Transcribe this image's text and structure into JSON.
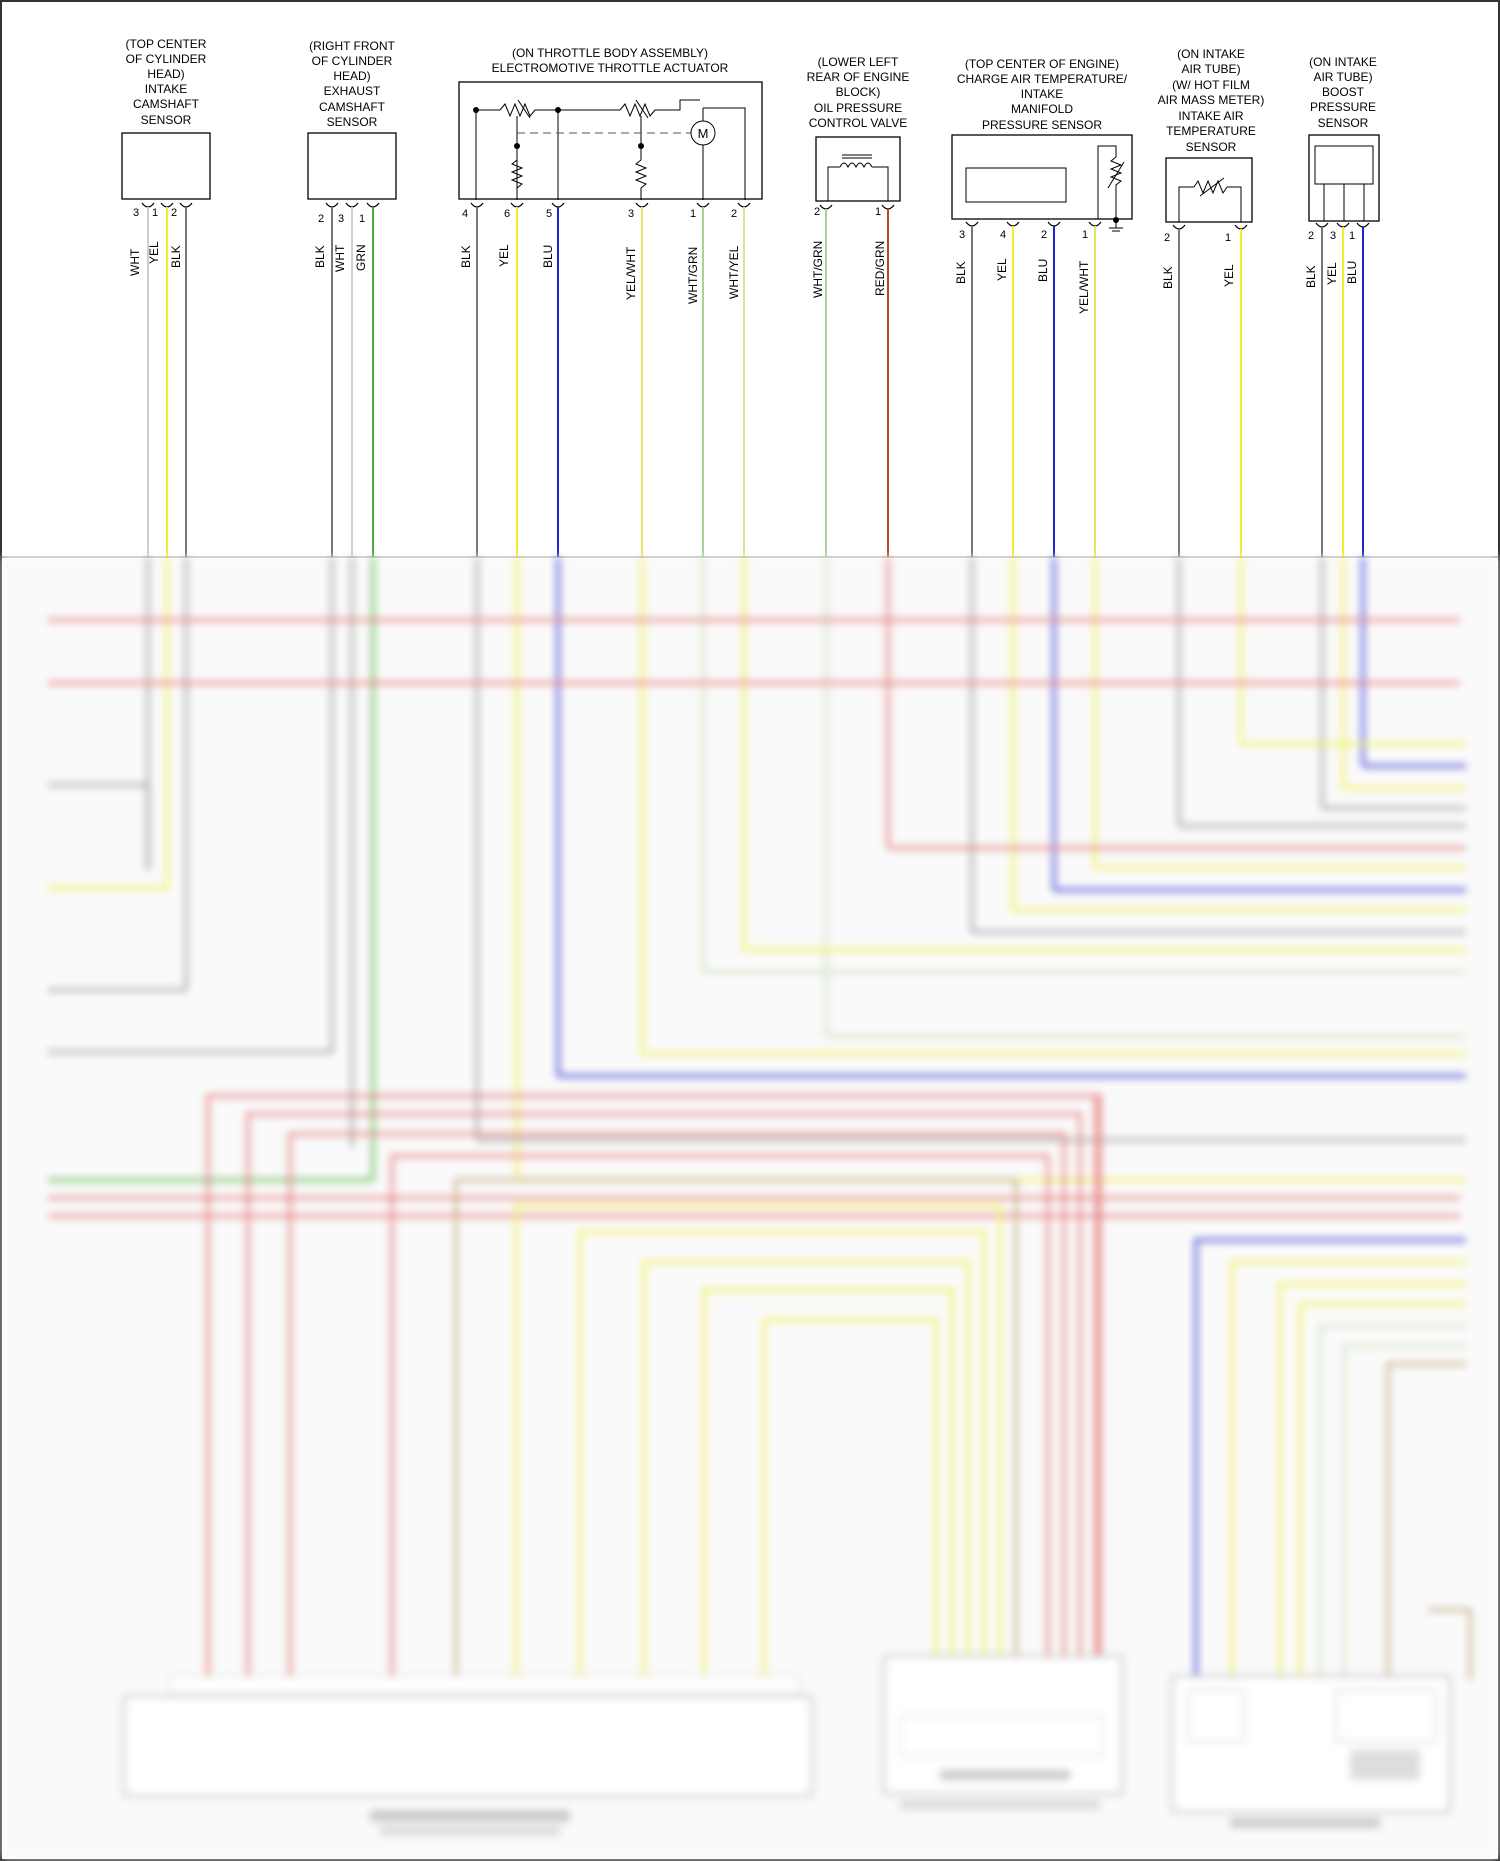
{
  "components": [
    {
      "id": "intake-cam",
      "lines": [
        "(TOP CENTER",
        "OF CYLINDER",
        "HEAD)",
        "INTAKE",
        "CAMSHAFT",
        "SENSOR"
      ],
      "pins": [
        {
          "num": "3",
          "wire": "WHT",
          "color": "#cfcfcf"
        },
        {
          "num": "1",
          "wire": "YEL",
          "color": "#f2ee2a"
        },
        {
          "num": "2",
          "wire": "BLK",
          "color": "#777777"
        }
      ]
    },
    {
      "id": "exhaust-cam",
      "lines": [
        "(RIGHT FRONT",
        "OF CYLINDER",
        "HEAD)",
        "EXHAUST",
        "CAMSHAFT",
        "SENSOR"
      ],
      "pins": [
        {
          "num": "2",
          "wire": "BLK",
          "color": "#777777"
        },
        {
          "num": "3",
          "wire": "WHT",
          "color": "#cfcfcf"
        },
        {
          "num": "1",
          "wire": "GRN",
          "color": "#48a838"
        }
      ]
    },
    {
      "id": "throttle",
      "lines": [
        "(ON THROTTLE BODY ASSEMBLY)",
        "ELECTROMOTIVE THROTTLE ACTUATOR"
      ],
      "motor": "M",
      "pins": [
        {
          "num": "4",
          "wire": "BLK",
          "color": "#777777"
        },
        {
          "num": "6",
          "wire": "YEL",
          "color": "#f2ee2a"
        },
        {
          "num": "5",
          "wire": "BLU",
          "color": "#2222cc"
        },
        {
          "num": "3",
          "wire": "YEL/WHT",
          "color": "#e4e466"
        },
        {
          "num": "1",
          "wire": "WHT/GRN",
          "color": "#a8d29a"
        },
        {
          "num": "2",
          "wire": "WHT/YEL",
          "color": "#e0e48a"
        }
      ]
    },
    {
      "id": "oil-valve",
      "lines": [
        "(LOWER LEFT",
        "REAR OF ENGINE",
        "BLOCK)",
        "OIL PRESSURE",
        "CONTROL VALVE"
      ],
      "pins": [
        {
          "num": "2",
          "wire": "WHT/GRN",
          "color": "#a8d29a"
        },
        {
          "num": "1",
          "wire": "RED/GRN",
          "color": "#b04a2a"
        }
      ]
    },
    {
      "id": "charge-air",
      "lines": [
        "(TOP CENTER OF ENGINE)",
        "CHARGE AIR TEMPERATURE/",
        "INTAKE",
        "MANIFOLD",
        "PRESSURE SENSOR"
      ],
      "pins": [
        {
          "num": "3",
          "wire": "BLK",
          "color": "#777777"
        },
        {
          "num": "4",
          "wire": "YEL",
          "color": "#f2ee2a"
        },
        {
          "num": "2",
          "wire": "BLU",
          "color": "#2222cc"
        },
        {
          "num": "1",
          "wire": "YEL/WHT",
          "color": "#e4e466"
        }
      ]
    },
    {
      "id": "iat",
      "lines": [
        "(ON INTAKE",
        "AIR TUBE)",
        "(W/ HOT FILM",
        "AIR MASS METER)",
        "INTAKE AIR",
        "TEMPERATURE",
        "SENSOR"
      ],
      "pins": [
        {
          "num": "2",
          "wire": "BLK",
          "color": "#777777"
        },
        {
          "num": "1",
          "wire": "YEL",
          "color": "#f2ee2a"
        }
      ]
    },
    {
      "id": "boost",
      "lines": [
        "(ON INTAKE",
        "AIR TUBE)",
        "BOOST",
        "PRESSURE",
        "SENSOR"
      ],
      "pins": [
        {
          "num": "2",
          "wire": "BLK",
          "color": "#777777"
        },
        {
          "num": "3",
          "wire": "YEL",
          "color": "#f2ee2a"
        },
        {
          "num": "1",
          "wire": "BLU",
          "color": "#2222cc"
        }
      ]
    }
  ],
  "colors": {
    "red": "#e88a8a",
    "blk": "#aaaaaa",
    "blu": "#5555dd",
    "yel": "#f0f06a",
    "grn": "#6fbf5f",
    "tan": "#c9b48e",
    "lt": "#d5e3c9"
  }
}
